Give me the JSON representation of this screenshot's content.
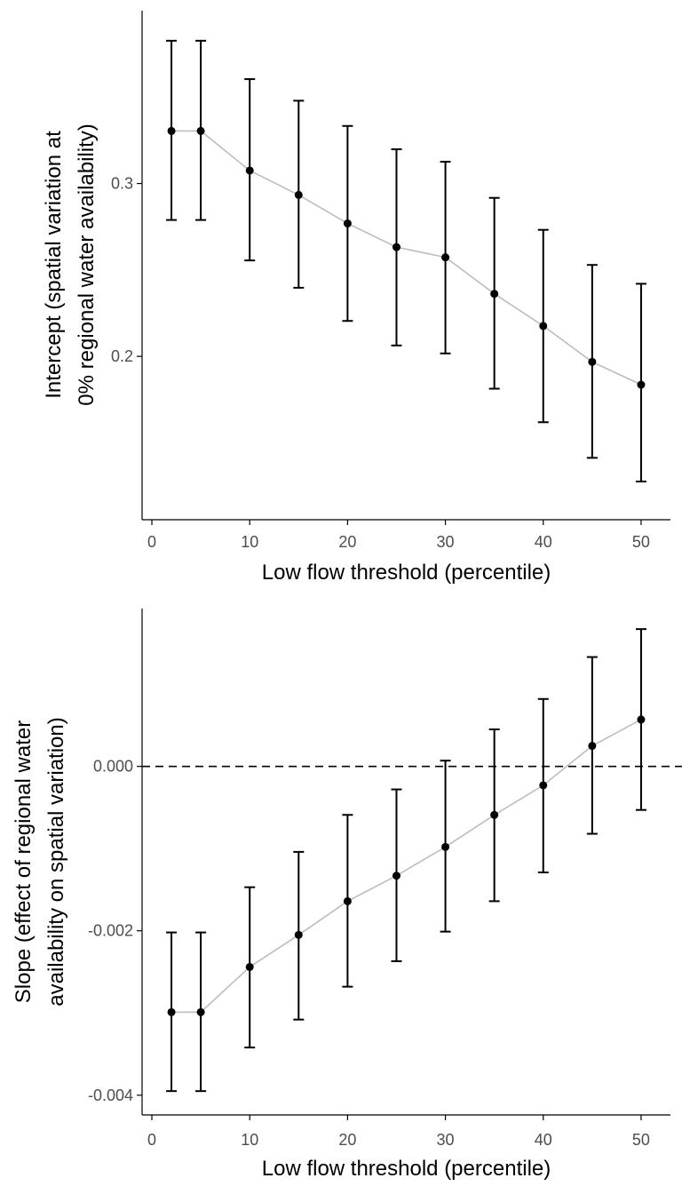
{
  "colors": {
    "line": "#bdbdbd",
    "points": "#000000",
    "errorbars": "#000000",
    "axes": "#000000"
  },
  "chart_data": [
    {
      "type": "line",
      "title": "",
      "xlabel": "Low flow threshold (percentile)",
      "ylabel_lines": [
        "Intercept (spatial variation at",
        "0% regional water availability)"
      ],
      "xlim": [
        -1,
        53
      ],
      "ylim": [
        0.1055,
        0.4
      ],
      "xticks": [
        0,
        10,
        20,
        30,
        40,
        50
      ],
      "xtick_labels": [
        "0",
        "10",
        "20",
        "30",
        "40",
        "50"
      ],
      "yticks": [
        0.2,
        0.3
      ],
      "ytick_labels": [
        "0.2",
        "0.3"
      ],
      "grid": false,
      "legend": "none",
      "reference_line": null,
      "x": [
        2,
        5,
        10,
        15,
        20,
        25,
        30,
        35,
        40,
        45,
        50
      ],
      "y": [
        0.3304,
        0.3304,
        0.3075,
        0.2934,
        0.2769,
        0.2632,
        0.2573,
        0.2362,
        0.2176,
        0.1968,
        0.1836
      ],
      "y_lower": [
        0.2789,
        0.2789,
        0.2555,
        0.2397,
        0.2205,
        0.2063,
        0.2017,
        0.1813,
        0.1619,
        0.1413,
        0.1276
      ],
      "y_upper": [
        0.3826,
        0.3826,
        0.3604,
        0.3479,
        0.3333,
        0.3198,
        0.3126,
        0.2917,
        0.2732,
        0.2529,
        0.242
      ]
    },
    {
      "type": "line",
      "title": "",
      "xlabel": "Low flow threshold (percentile)",
      "ylabel_lines": [
        "Slope (effect of regional water",
        "availability on spatial variation)"
      ],
      "xlim": [
        -1,
        53
      ],
      "ylim": [
        -0.00424,
        0.00192
      ],
      "xticks": [
        0,
        10,
        20,
        30,
        40,
        50
      ],
      "xtick_labels": [
        "0",
        "10",
        "20",
        "30",
        "40",
        "50"
      ],
      "yticks": [
        -0.004,
        -0.002,
        0
      ],
      "ytick_labels": [
        "-0.004",
        "-0.002",
        "0.000"
      ],
      "grid": false,
      "legend": "none",
      "reference_line": {
        "y": 0,
        "style": "dashed"
      },
      "x": [
        2,
        5,
        10,
        15,
        20,
        25,
        30,
        35,
        40,
        45,
        50
      ],
      "y": [
        -0.00299,
        -0.00299,
        -0.00244,
        -0.00205,
        -0.00164,
        -0.00133,
        -0.00098,
        -0.00059,
        -0.00023,
        0.00025,
        0.00057
      ],
      "y_lower": [
        -0.00395,
        -0.00395,
        -0.00342,
        -0.00308,
        -0.00268,
        -0.00237,
        -0.00201,
        -0.00164,
        -0.00129,
        -0.00082,
        -0.00053
      ],
      "y_upper": [
        -0.00202,
        -0.00202,
        -0.00147,
        -0.00104,
        -0.00059,
        -0.00028,
        7e-05,
        0.00045,
        0.00082,
        0.00133,
        0.00167
      ]
    }
  ]
}
